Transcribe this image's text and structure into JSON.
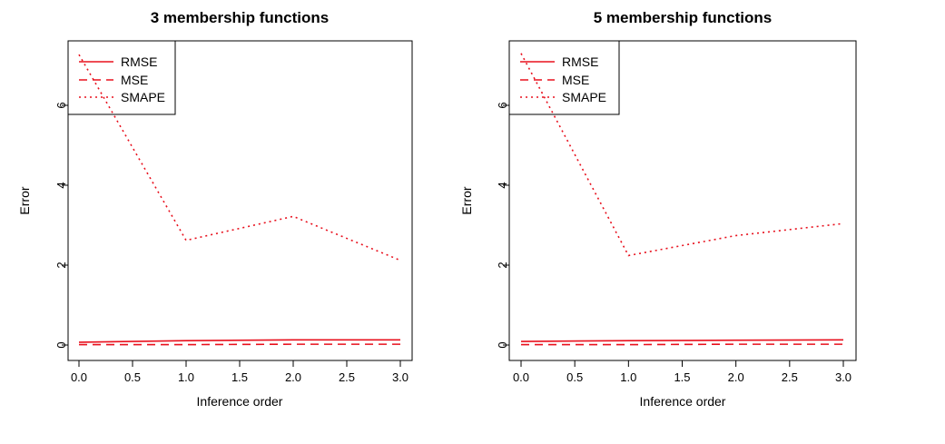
{
  "line_color": "#e8101d",
  "chart_data": [
    {
      "type": "line",
      "title": "3 membership functions",
      "xlabel": "Inference order",
      "ylabel": "Error",
      "xlim": [
        0,
        3
      ],
      "ylim": [
        0,
        7.3
      ],
      "xticks": [
        "0.0",
        "0.5",
        "1.0",
        "1.5",
        "2.0",
        "2.5",
        "3.0"
      ],
      "yticks": [
        "0",
        "2",
        "4",
        "6"
      ],
      "legend_position": "top-left",
      "x": [
        0,
        1,
        2,
        3
      ],
      "series": [
        {
          "name": "RMSE",
          "style": "solid",
          "values": [
            0.07,
            0.11,
            0.13,
            0.13
          ]
        },
        {
          "name": "MSE",
          "style": "dashed",
          "values": [
            0.01,
            0.01,
            0.02,
            0.02
          ]
        },
        {
          "name": "SMAPE",
          "style": "dotted",
          "values": [
            7.27,
            2.62,
            3.22,
            2.12
          ]
        }
      ]
    },
    {
      "type": "line",
      "title": "5 membership functions",
      "xlabel": "Inference order",
      "ylabel": "Error",
      "xlim": [
        0,
        3
      ],
      "ylim": [
        0,
        7.3
      ],
      "xticks": [
        "0.0",
        "0.5",
        "1.0",
        "1.5",
        "2.0",
        "2.5",
        "3.0"
      ],
      "yticks": [
        "0",
        "2",
        "4",
        "6"
      ],
      "legend_position": "top-left",
      "x": [
        0,
        1,
        2,
        3
      ],
      "series": [
        {
          "name": "RMSE",
          "style": "solid",
          "values": [
            0.09,
            0.11,
            0.12,
            0.13
          ]
        },
        {
          "name": "MSE",
          "style": "dashed",
          "values": [
            0.01,
            0.01,
            0.02,
            0.02
          ]
        },
        {
          "name": "SMAPE",
          "style": "dotted",
          "values": [
            7.3,
            2.24,
            2.74,
            3.04
          ]
        }
      ]
    }
  ]
}
